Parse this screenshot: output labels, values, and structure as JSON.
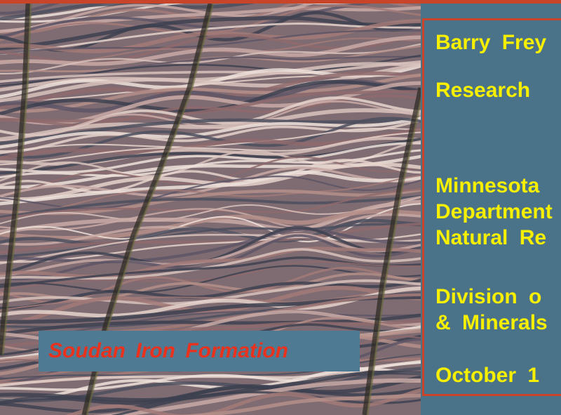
{
  "caption": "Soudan Iron Formation",
  "panel": {
    "lines": [
      "Barry Frey",
      "Research",
      "Minnesota",
      "Department",
      "Natural Re",
      "Division o",
      "& Minerals",
      "October 1"
    ]
  },
  "colors": {
    "background": "#4a7289",
    "border": "#c8452a",
    "panel_text": "#f6f000",
    "caption_text": "#e8321e",
    "caption_box": "#4f7a93"
  }
}
